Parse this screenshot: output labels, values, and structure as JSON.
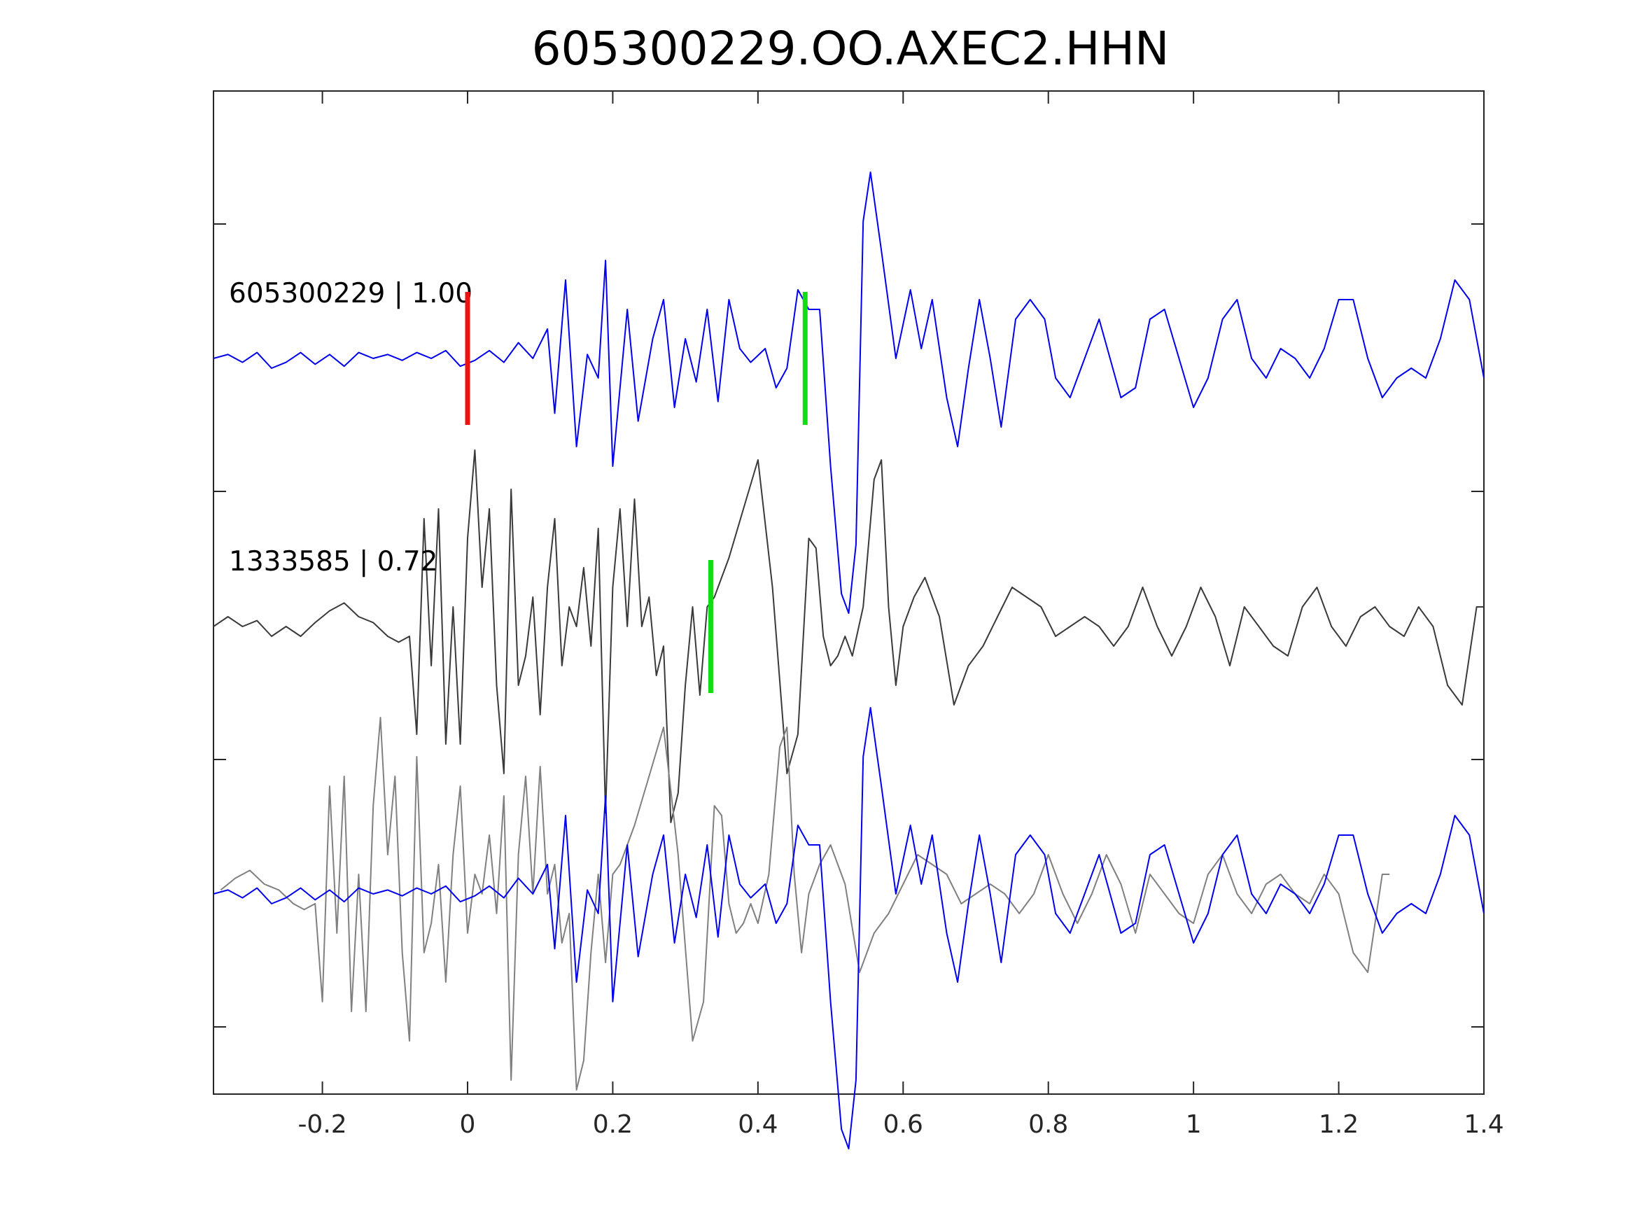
{
  "chart_data": {
    "type": "line",
    "title": "605300229.OO.AXEC2.HHN",
    "xlim": [
      -0.35,
      1.4
    ],
    "x_ticks": [
      -0.2,
      0,
      0.2,
      0.4,
      0.6,
      0.8,
      1,
      1.2,
      1.4
    ],
    "x_tick_labels": [
      "-0.2",
      "0",
      "0.2",
      "0.4",
      "0.6",
      "0.8",
      "1",
      "1.2",
      "1.4"
    ],
    "y_axis_labels_shown": false,
    "grid": false,
    "colors": {
      "blue": "#0000ee",
      "dark": "#3a3a3a",
      "gray": "#808080",
      "red": "#ee1111",
      "green": "#11dd11"
    },
    "traces": [
      {
        "label": "605300229 | 1.00",
        "row": 1,
        "color": "#0000ee",
        "points": [
          [
            -0.35,
            0.0
          ],
          [
            -0.33,
            0.02
          ],
          [
            -0.31,
            -0.02
          ],
          [
            -0.29,
            0.03
          ],
          [
            -0.27,
            -0.05
          ],
          [
            -0.25,
            -0.02
          ],
          [
            -0.23,
            0.03
          ],
          [
            -0.21,
            -0.03
          ],
          [
            -0.19,
            0.02
          ],
          [
            -0.17,
            -0.04
          ],
          [
            -0.15,
            0.03
          ],
          [
            -0.13,
            0.0
          ],
          [
            -0.11,
            0.02
          ],
          [
            -0.09,
            -0.01
          ],
          [
            -0.07,
            0.03
          ],
          [
            -0.05,
            0.0
          ],
          [
            -0.03,
            0.04
          ],
          [
            -0.01,
            -0.04
          ],
          [
            0.01,
            -0.01
          ],
          [
            0.03,
            0.04
          ],
          [
            0.05,
            -0.02
          ],
          [
            0.07,
            0.08
          ],
          [
            0.09,
            0.0
          ],
          [
            0.11,
            0.15
          ],
          [
            0.12,
            -0.28
          ],
          [
            0.135,
            0.4
          ],
          [
            0.15,
            -0.45
          ],
          [
            0.165,
            0.02
          ],
          [
            0.18,
            -0.1
          ],
          [
            0.19,
            0.5
          ],
          [
            0.2,
            -0.55
          ],
          [
            0.22,
            0.25
          ],
          [
            0.235,
            -0.32
          ],
          [
            0.255,
            0.1
          ],
          [
            0.27,
            0.3
          ],
          [
            0.285,
            -0.25
          ],
          [
            0.3,
            0.1
          ],
          [
            0.315,
            -0.12
          ],
          [
            0.33,
            0.25
          ],
          [
            0.345,
            -0.22
          ],
          [
            0.36,
            0.3
          ],
          [
            0.375,
            0.05
          ],
          [
            0.39,
            -0.02
          ],
          [
            0.41,
            0.05
          ],
          [
            0.425,
            -0.15
          ],
          [
            0.44,
            -0.05
          ],
          [
            0.455,
            0.35
          ],
          [
            0.47,
            0.25
          ],
          [
            0.485,
            0.25
          ],
          [
            0.5,
            -0.55
          ],
          [
            0.515,
            -1.2
          ],
          [
            0.525,
            -1.3
          ],
          [
            0.535,
            -0.95
          ],
          [
            0.545,
            0.7
          ],
          [
            0.555,
            0.95
          ],
          [
            0.57,
            0.55
          ],
          [
            0.59,
            0.0
          ],
          [
            0.61,
            0.35
          ],
          [
            0.625,
            0.05
          ],
          [
            0.64,
            0.3
          ],
          [
            0.66,
            -0.2
          ],
          [
            0.675,
            -0.45
          ],
          [
            0.69,
            -0.05
          ],
          [
            0.705,
            0.3
          ],
          [
            0.72,
            0.0
          ],
          [
            0.735,
            -0.35
          ],
          [
            0.755,
            0.2
          ],
          [
            0.775,
            0.3
          ],
          [
            0.795,
            0.2
          ],
          [
            0.81,
            -0.1
          ],
          [
            0.83,
            -0.2
          ],
          [
            0.85,
            0.0
          ],
          [
            0.87,
            0.2
          ],
          [
            0.885,
            0.0
          ],
          [
            0.9,
            -0.2
          ],
          [
            0.92,
            -0.15
          ],
          [
            0.94,
            0.2
          ],
          [
            0.96,
            0.25
          ],
          [
            0.98,
            0.0
          ],
          [
            1.0,
            -0.25
          ],
          [
            1.02,
            -0.1
          ],
          [
            1.04,
            0.2
          ],
          [
            1.06,
            0.3
          ],
          [
            1.08,
            0.0
          ],
          [
            1.1,
            -0.1
          ],
          [
            1.12,
            0.05
          ],
          [
            1.14,
            0.0
          ],
          [
            1.16,
            -0.1
          ],
          [
            1.18,
            0.05
          ],
          [
            1.2,
            0.3
          ],
          [
            1.22,
            0.3
          ],
          [
            1.24,
            0.0
          ],
          [
            1.26,
            -0.2
          ],
          [
            1.28,
            -0.1
          ],
          [
            1.3,
            -0.05
          ],
          [
            1.32,
            -0.1
          ],
          [
            1.34,
            0.1
          ],
          [
            1.36,
            0.4
          ],
          [
            1.38,
            0.3
          ],
          [
            1.4,
            -0.1
          ]
        ]
      },
      {
        "label": "1333585 | 0.72",
        "row": 2,
        "color": "#3a3a3a",
        "points": [
          [
            -0.35,
            0.0
          ],
          [
            -0.33,
            0.05
          ],
          [
            -0.31,
            0.0
          ],
          [
            -0.29,
            0.03
          ],
          [
            -0.27,
            -0.05
          ],
          [
            -0.25,
            0.0
          ],
          [
            -0.23,
            -0.05
          ],
          [
            -0.21,
            0.02
          ],
          [
            -0.19,
            0.08
          ],
          [
            -0.17,
            0.12
          ],
          [
            -0.15,
            0.05
          ],
          [
            -0.13,
            0.02
          ],
          [
            -0.11,
            -0.05
          ],
          [
            -0.095,
            -0.08
          ],
          [
            -0.08,
            -0.05
          ],
          [
            -0.07,
            -0.55
          ],
          [
            -0.06,
            0.55
          ],
          [
            -0.05,
            -0.2
          ],
          [
            -0.04,
            0.6
          ],
          [
            -0.03,
            -0.6
          ],
          [
            -0.02,
            0.1
          ],
          [
            -0.01,
            -0.6
          ],
          [
            0.0,
            0.45
          ],
          [
            0.01,
            0.9
          ],
          [
            0.02,
            0.2
          ],
          [
            0.03,
            0.6
          ],
          [
            0.04,
            -0.3
          ],
          [
            0.05,
            -0.75
          ],
          [
            0.06,
            0.7
          ],
          [
            0.07,
            -0.3
          ],
          [
            0.08,
            -0.15
          ],
          [
            0.09,
            0.15
          ],
          [
            0.1,
            -0.45
          ],
          [
            0.11,
            0.2
          ],
          [
            0.12,
            0.55
          ],
          [
            0.13,
            -0.2
          ],
          [
            0.14,
            0.1
          ],
          [
            0.15,
            0.0
          ],
          [
            0.16,
            0.3
          ],
          [
            0.17,
            -0.1
          ],
          [
            0.18,
            0.5
          ],
          [
            0.19,
            -0.95
          ],
          [
            0.2,
            0.2
          ],
          [
            0.21,
            0.6
          ],
          [
            0.22,
            0.0
          ],
          [
            0.23,
            0.65
          ],
          [
            0.24,
            0.0
          ],
          [
            0.25,
            0.15
          ],
          [
            0.26,
            -0.25
          ],
          [
            0.27,
            -0.1
          ],
          [
            0.28,
            -1.0
          ],
          [
            0.29,
            -0.85
          ],
          [
            0.3,
            -0.3
          ],
          [
            0.31,
            0.1
          ],
          [
            0.32,
            -0.35
          ],
          [
            0.33,
            0.1
          ],
          [
            0.34,
            0.15
          ],
          [
            0.35,
            0.25
          ],
          [
            0.36,
            0.35
          ],
          [
            0.38,
            0.6
          ],
          [
            0.4,
            0.85
          ],
          [
            0.42,
            0.2
          ],
          [
            0.44,
            -0.75
          ],
          [
            0.455,
            -0.55
          ],
          [
            0.47,
            0.45
          ],
          [
            0.48,
            0.4
          ],
          [
            0.49,
            -0.05
          ],
          [
            0.5,
            -0.2
          ],
          [
            0.51,
            -0.15
          ],
          [
            0.52,
            -0.05
          ],
          [
            0.53,
            -0.15
          ],
          [
            0.545,
            0.1
          ],
          [
            0.56,
            0.75
          ],
          [
            0.57,
            0.85
          ],
          [
            0.58,
            0.1
          ],
          [
            0.59,
            -0.3
          ],
          [
            0.6,
            0.0
          ],
          [
            0.615,
            0.15
          ],
          [
            0.63,
            0.25
          ],
          [
            0.65,
            0.05
          ],
          [
            0.67,
            -0.4
          ],
          [
            0.69,
            -0.2
          ],
          [
            0.71,
            -0.1
          ],
          [
            0.73,
            0.05
          ],
          [
            0.75,
            0.2
          ],
          [
            0.77,
            0.15
          ],
          [
            0.79,
            0.1
          ],
          [
            0.81,
            -0.05
          ],
          [
            0.83,
            0.0
          ],
          [
            0.85,
            0.05
          ],
          [
            0.87,
            0.0
          ],
          [
            0.89,
            -0.1
          ],
          [
            0.91,
            0.0
          ],
          [
            0.93,
            0.2
          ],
          [
            0.95,
            0.0
          ],
          [
            0.97,
            -0.15
          ],
          [
            0.99,
            0.0
          ],
          [
            1.01,
            0.2
          ],
          [
            1.03,
            0.05
          ],
          [
            1.05,
            -0.2
          ],
          [
            1.07,
            0.1
          ],
          [
            1.09,
            0.0
          ],
          [
            1.11,
            -0.1
          ],
          [
            1.13,
            -0.15
          ],
          [
            1.15,
            0.1
          ],
          [
            1.17,
            0.2
          ],
          [
            1.19,
            0.0
          ],
          [
            1.21,
            -0.1
          ],
          [
            1.23,
            0.05
          ],
          [
            1.25,
            0.1
          ],
          [
            1.27,
            0.0
          ],
          [
            1.29,
            -0.05
          ],
          [
            1.31,
            0.1
          ],
          [
            1.33,
            0.0
          ],
          [
            1.35,
            -0.3
          ],
          [
            1.37,
            -0.4
          ],
          [
            1.39,
            0.1
          ],
          [
            1.4,
            0.1
          ]
        ]
      },
      {
        "label": "",
        "row": 3,
        "overlay": true,
        "overlay_shift_seconds": -0.13,
        "source_traces": [
          0,
          1
        ],
        "colors": [
          "#808080",
          "#0000ee"
        ]
      }
    ],
    "picks": [
      {
        "row": 1,
        "x": 0.0,
        "color": "#ee1111"
      },
      {
        "row": 1,
        "x": 0.465,
        "color": "#11dd11"
      },
      {
        "row": 2,
        "x": 0.335,
        "color": "#11dd11"
      }
    ]
  }
}
